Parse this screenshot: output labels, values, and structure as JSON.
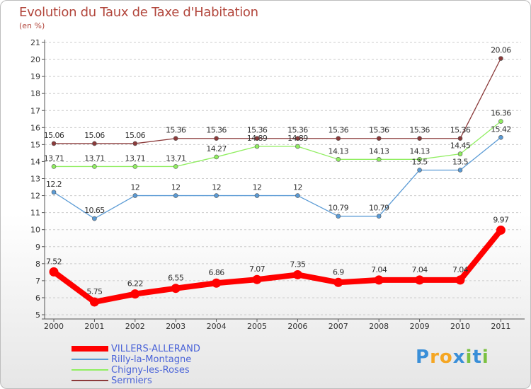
{
  "chart_data": {
    "type": "line",
    "title": "Evolution du Taux de Taxe d'Habitation",
    "subtitle": "(en %)",
    "ylim": [
      5,
      21
    ],
    "y_ticks": [
      5,
      6,
      7,
      8,
      9,
      10,
      11,
      12,
      13,
      14,
      15,
      16,
      17,
      18,
      19,
      20,
      21
    ],
    "categories": [
      "2000",
      "2001",
      "2002",
      "2003",
      "2004",
      "2005",
      "2006",
      "2007",
      "2008",
      "2009",
      "2010",
      "2011"
    ],
    "series": [
      {
        "name": "VILLERS-ALLERAND",
        "color": "#ff0000",
        "labels": [
          "7.52",
          "5.75",
          "6.22",
          "6.55",
          "6.86",
          "7.07",
          "7.35",
          "6.9",
          "7.04",
          "7.04",
          "7.04",
          "9.97"
        ],
        "values": [
          7.52,
          5.75,
          6.22,
          6.55,
          6.86,
          7.07,
          7.35,
          6.9,
          7.04,
          7.04,
          7.04,
          9.97
        ]
      },
      {
        "name": "Rilly-la-Montagne",
        "color": "#5b9bd5",
        "labels": [
          "12.2",
          "10.65",
          "12",
          "12",
          "12",
          "12",
          "12",
          "10.79",
          "10.79",
          "13.5",
          "13.5",
          "15.42"
        ],
        "values": [
          12.2,
          10.65,
          12,
          12,
          12,
          12,
          12,
          10.79,
          10.79,
          13.5,
          13.5,
          15.42
        ]
      },
      {
        "name": "Chigny-les-Roses",
        "color": "#90ee60",
        "labels": [
          "13.71",
          "13.71",
          "13.71",
          "13.71",
          "14.27",
          "14.89",
          "14.89",
          "14.13",
          "14.13",
          "14.13",
          "14.45",
          "16.36"
        ],
        "values": [
          13.71,
          13.71,
          13.71,
          13.71,
          14.27,
          14.89,
          14.89,
          14.13,
          14.13,
          14.13,
          14.45,
          16.36
        ]
      },
      {
        "name": "Sermiers",
        "color": "#8b3a3a",
        "labels": [
          "15.06",
          "15.06",
          "15.06",
          "15.36",
          "15.36",
          "15.36",
          "15.36",
          "15.36",
          "15.36",
          "15.36",
          "15.36",
          "20.06"
        ],
        "values": [
          15.06,
          15.06,
          15.06,
          15.36,
          15.36,
          15.36,
          15.36,
          15.36,
          15.36,
          15.36,
          15.36,
          20.06
        ]
      }
    ]
  },
  "colors": {
    "title": "#b2463c",
    "axis": "#555555",
    "grid": "#cccccc",
    "legend_text": "#4a63d8"
  },
  "logo": {
    "text": "Proxiti",
    "letters": [
      "P",
      "r",
      "o",
      "x",
      "i",
      "t",
      "i"
    ],
    "colors": [
      "#3a8fd8",
      "#f5a623",
      "#f5a623",
      "#3a8fd8",
      "#7bc142",
      "#3a8fd8",
      "#7bc142"
    ]
  }
}
